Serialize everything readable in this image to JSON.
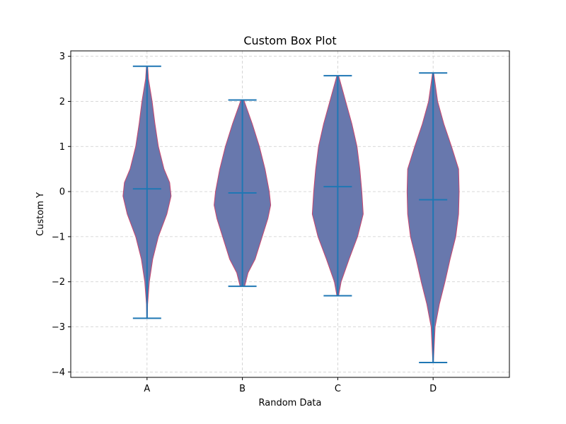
{
  "chart_data": {
    "type": "violin",
    "title": "Custom Box Plot",
    "xlabel": "Random Data",
    "ylabel": "Custom Y",
    "categories": [
      "A",
      "B",
      "C",
      "D"
    ],
    "ylim": [
      -4.12,
      3.12
    ],
    "yticks": [
      -4,
      -3,
      -2,
      -1,
      0,
      1,
      2,
      3
    ],
    "grid": true,
    "colors": {
      "body": "#6878ad",
      "edge": "#c8466e",
      "lines": "#1f77b4",
      "grid": "#cccccc"
    },
    "series": [
      {
        "category": "A",
        "min": -2.81,
        "max": 2.78,
        "median": 0.06,
        "density": [
          [
            -2.81,
            0.01
          ],
          [
            -2.5,
            0.02
          ],
          [
            -2.0,
            0.08
          ],
          [
            -1.5,
            0.2
          ],
          [
            -1.0,
            0.4
          ],
          [
            -0.5,
            0.7
          ],
          [
            -0.1,
            0.85
          ],
          [
            0.2,
            0.8
          ],
          [
            0.5,
            0.6
          ],
          [
            1.0,
            0.4
          ],
          [
            1.5,
            0.28
          ],
          [
            2.0,
            0.18
          ],
          [
            2.5,
            0.05
          ],
          [
            2.78,
            0.02
          ]
        ]
      },
      {
        "category": "B",
        "min": -2.1,
        "max": 2.03,
        "median": -0.03,
        "density": [
          [
            -2.1,
            0.08
          ],
          [
            -1.8,
            0.2
          ],
          [
            -1.5,
            0.45
          ],
          [
            -1.0,
            0.7
          ],
          [
            -0.6,
            0.9
          ],
          [
            -0.3,
            1.0
          ],
          [
            0.0,
            0.95
          ],
          [
            0.5,
            0.8
          ],
          [
            1.0,
            0.6
          ],
          [
            1.5,
            0.35
          ],
          [
            2.03,
            0.05
          ]
        ]
      },
      {
        "category": "C",
        "min": -2.31,
        "max": 2.57,
        "median": 0.11,
        "density": [
          [
            -2.31,
            0.03
          ],
          [
            -2.0,
            0.12
          ],
          [
            -1.5,
            0.4
          ],
          [
            -1.0,
            0.7
          ],
          [
            -0.5,
            0.9
          ],
          [
            0.0,
            0.85
          ],
          [
            0.5,
            0.78
          ],
          [
            1.0,
            0.68
          ],
          [
            1.5,
            0.5
          ],
          [
            2.0,
            0.28
          ],
          [
            2.57,
            0.03
          ]
        ]
      },
      {
        "category": "D",
        "min": -3.79,
        "max": 2.63,
        "median": -0.18,
        "density": [
          [
            -3.79,
            0.01
          ],
          [
            -3.0,
            0.07
          ],
          [
            -2.5,
            0.22
          ],
          [
            -2.0,
            0.42
          ],
          [
            -1.5,
            0.6
          ],
          [
            -1.0,
            0.8
          ],
          [
            -0.5,
            0.9
          ],
          [
            0.0,
            0.92
          ],
          [
            0.5,
            0.9
          ],
          [
            1.0,
            0.65
          ],
          [
            1.5,
            0.38
          ],
          [
            2.0,
            0.16
          ],
          [
            2.63,
            0.02
          ]
        ]
      }
    ]
  }
}
